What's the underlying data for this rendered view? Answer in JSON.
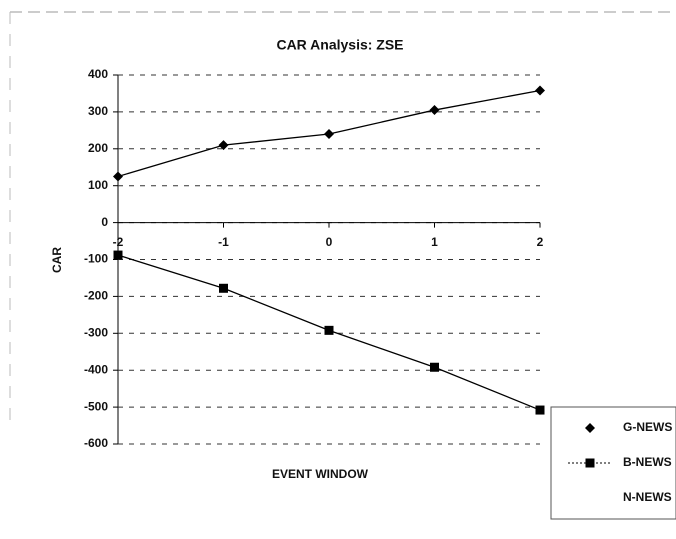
{
  "chart_data": {
    "type": "line",
    "title": "CAR Analysis: ZSE",
    "x_label": "EVENT WINDOW",
    "y_label": "CAR",
    "x": [
      -2,
      -1,
      0,
      1,
      2
    ],
    "series": [
      {
        "name": "G-NEWS",
        "color": "#000000",
        "marker": "diamond",
        "values": [
          125,
          210,
          240,
          305,
          358
        ]
      },
      {
        "name": "B-NEWS",
        "color": "#000000",
        "marker": "square",
        "values": [
          -88,
          -178,
          -292,
          -392,
          -508
        ]
      },
      {
        "name": "N-NEWS",
        "color": "#000000",
        "marker": "none",
        "values": [
          null,
          null,
          null,
          null,
          null
        ]
      }
    ],
    "xlim": [
      -2,
      2
    ],
    "xticks": [
      -2,
      -1,
      0,
      1,
      2
    ],
    "ylim": [
      -600,
      400
    ],
    "yticks": [
      -600,
      -500,
      -400,
      -300,
      -200,
      -100,
      0,
      100,
      200,
      300,
      400
    ],
    "grid": true,
    "legend": "lower right"
  }
}
